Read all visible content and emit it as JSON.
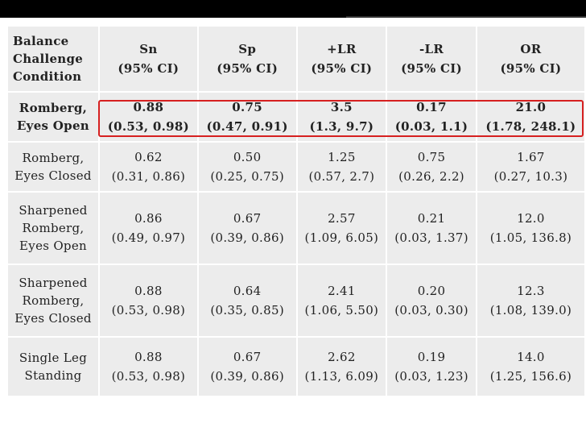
{
  "header": {
    "condition": [
      "Balance",
      "Challenge",
      "Condition"
    ],
    "columns": [
      {
        "name": "Sn",
        "sub": "(95% CI)"
      },
      {
        "name": "Sp",
        "sub": "(95% CI)"
      },
      {
        "name": "+LR",
        "sub": "(95% CI)"
      },
      {
        "name": "-LR",
        "sub": "(95% CI)"
      },
      {
        "name": "OR",
        "sub": "(95% CI)"
      }
    ]
  },
  "rows": [
    {
      "condition": [
        "Romberg,",
        "Eyes Open"
      ],
      "cells": [
        [
          "0.88",
          "(0.53, 0.98)"
        ],
        [
          "0.75",
          "(0.47, 0.91)"
        ],
        [
          "3.5",
          "(1.3, 9.7)"
        ],
        [
          "0.17",
          "(0.03, 1.1)"
        ],
        [
          "21.0",
          "(1.78, 248.1)"
        ]
      ]
    },
    {
      "condition": [
        "Romberg,",
        "Eyes Closed"
      ],
      "cells": [
        [
          "0.62",
          "(0.31, 0.86)"
        ],
        [
          "0.50",
          "(0.25, 0.75)"
        ],
        [
          "1.25",
          "(0.57, 2.7)"
        ],
        [
          "0.75",
          "(0.26, 2.2)"
        ],
        [
          "1.67",
          "(0.27, 10.3)"
        ]
      ]
    },
    {
      "condition": [
        "Sharpened",
        "Romberg,",
        "Eyes Open"
      ],
      "cells": [
        [
          "0.86",
          "(0.49, 0.97)"
        ],
        [
          "0.67",
          "(0.39, 0.86)"
        ],
        [
          "2.57",
          "(1.09, 6.05)"
        ],
        [
          "0.21",
          "(0.03, 1.37)"
        ],
        [
          "12.0",
          "(1.05, 136.8)"
        ]
      ]
    },
    {
      "condition": [
        "Sharpened",
        "Romberg,",
        "Eyes Closed"
      ],
      "cells": [
        [
          "0.88",
          "(0.53, 0.98)"
        ],
        [
          "0.64",
          "(0.35, 0.85)"
        ],
        [
          "2.41",
          "(1.06, 5.50)"
        ],
        [
          "0.20",
          "(0.03, 0.30)"
        ],
        [
          "12.3",
          "(1.08, 139.0)"
        ]
      ]
    },
    {
      "condition": [
        "Single Leg",
        "Standing"
      ],
      "cells": [
        [
          "0.88",
          "(0.53, 0.98)"
        ],
        [
          "0.67",
          "(0.39, 0.86)"
        ],
        [
          "2.62",
          "(1.13, 6.09)"
        ],
        [
          "0.19",
          "(0.03, 1.23)"
        ],
        [
          "14.0",
          "(1.25, 156.6)"
        ]
      ]
    }
  ],
  "highlight_color": "#d62020"
}
